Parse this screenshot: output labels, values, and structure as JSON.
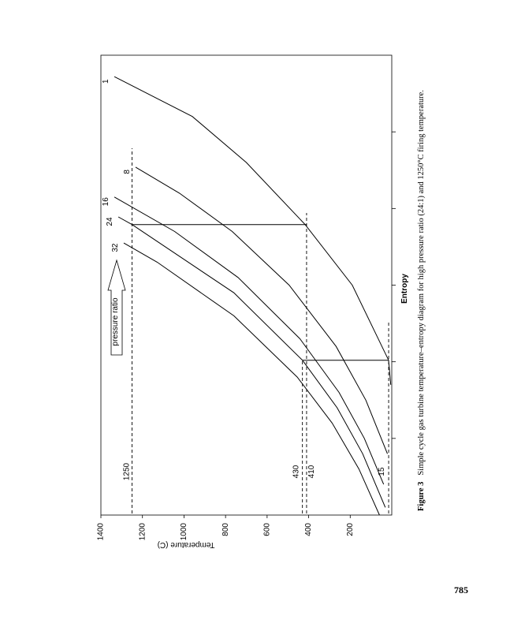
{
  "chart_data": {
    "type": "line",
    "xlabel": "Entropy",
    "ylabel": "Temperature (C)",
    "xlim": [
      0,
      6
    ],
    "xticks": [
      1,
      2,
      3,
      4,
      5
    ],
    "ylim": [
      0,
      1400
    ],
    "yticks": [
      200,
      400,
      600,
      800,
      1000,
      1200,
      1400
    ],
    "series": [
      {
        "name": "1",
        "color": "#000000",
        "x": [
          1.7,
          2.02,
          3.0,
          3.79,
          4.6,
          5.2,
          5.72
        ],
        "values": [
          5,
          15,
          190,
          417,
          700,
          960,
          1335
        ]
      },
      {
        "name": "8",
        "color": "#000000",
        "x": [
          0.8,
          1.5,
          2.2,
          3.0,
          3.7,
          4.2,
          4.54
        ],
        "values": [
          21,
          125,
          268,
          494,
          768,
          1022,
          1233
        ]
      },
      {
        "name": "16",
        "color": "#000000",
        "x": [
          0.4,
          1.0,
          1.6,
          2.3,
          3.1,
          3.7,
          4.15
        ],
        "values": [
          39,
          132,
          254,
          442,
          740,
          1045,
          1335
        ]
      },
      {
        "name": "24",
        "color": "#000000",
        "x": [
          0.1,
          0.8,
          1.4,
          2.02,
          2.9,
          3.79,
          3.89
        ],
        "values": [
          31,
          140,
          263,
          430,
          760,
          1250,
          1316
        ]
      },
      {
        "name": "32",
        "color": "#000000",
        "x": [
          0.0,
          0.6,
          1.2,
          1.8,
          2.6,
          3.3,
          3.55
        ],
        "values": [
          59,
          158,
          287,
          455,
          760,
          1129,
          1290
        ]
      }
    ],
    "reference_lines": [
      1250,
      430,
      410,
      15
    ],
    "cycle": {
      "x": [
        2.02,
        2.02,
        null,
        3.79,
        3.79
      ],
      "values": [
        15,
        430,
        null,
        1250,
        410
      ]
    },
    "annotation": "pressure ratio"
  },
  "caption": {
    "label": "Figure 3",
    "text": "Simple cycle gas turbine temperature–entropy diagram for high pressure ratio (24:1) and 1250°C firing temperature."
  },
  "page_number": "785"
}
